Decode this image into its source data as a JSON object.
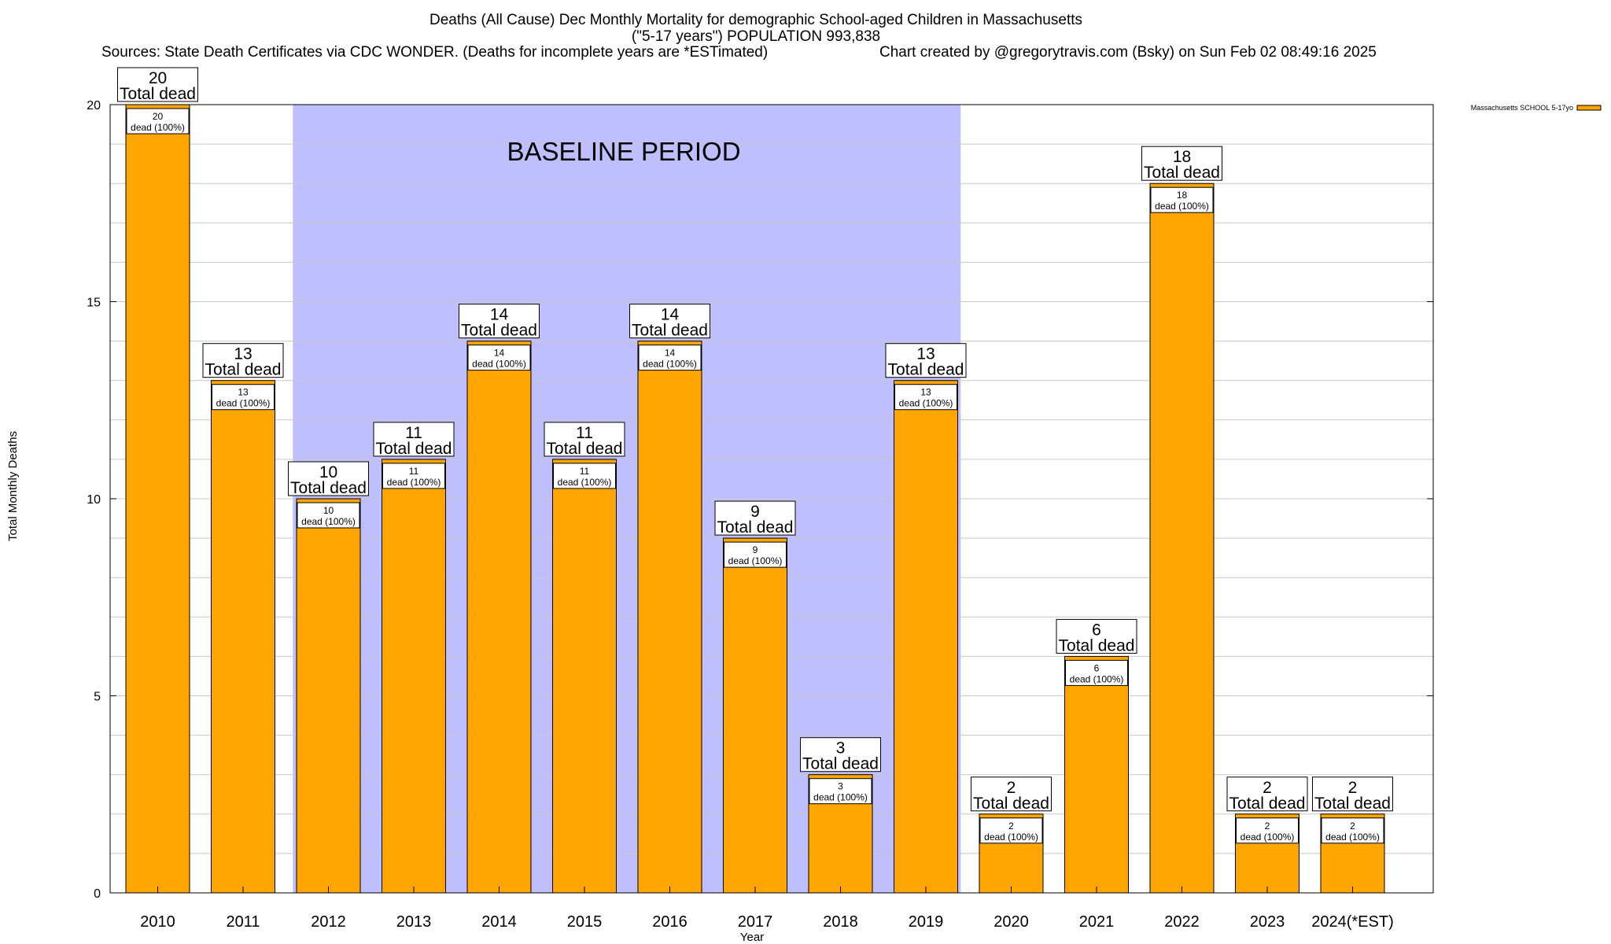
{
  "chart_data": {
    "type": "bar",
    "title": "Deaths (All Cause) Dec Monthly Mortality for demographic School-aged Children in Massachusetts",
    "subtitle": "(\"5-17 years\") POPULATION 993,838",
    "sources": "Sources: State Death Certificates via CDC WONDER. (Deaths for incomplete years are *ESTimated)",
    "credit": "Chart created by @gregorytravis.com (Bsky) on Sun Feb 02 08:49:16 2025",
    "xlabel": "Year",
    "ylabel": "Total Monthly Deaths",
    "ylim": [
      0,
      20
    ],
    "yticks": [
      "0",
      "5",
      "10",
      "15",
      "20"
    ],
    "grid": true,
    "legend_position": "top-right",
    "categories": [
      "2010",
      "2011",
      "2012",
      "2013",
      "2014",
      "2015",
      "2016",
      "2017",
      "2018",
      "2019",
      "2020",
      "2021",
      "2022",
      "2023",
      "2024(*EST)"
    ],
    "series": [
      {
        "name": "Massachusetts SCHOOL 5-17yo",
        "color": "#ffa500",
        "values": [
          20,
          13,
          10,
          11,
          14,
          11,
          14,
          9,
          3,
          13,
          2,
          6,
          18,
          2,
          2
        ],
        "value_labels": [
          "20",
          "13",
          "10",
          "11",
          "14",
          "11",
          "14",
          "9",
          "3",
          "13",
          "2",
          "6",
          "18",
          "2",
          "2"
        ]
      }
    ],
    "bar_label_total": "Total dead",
    "bar_label_share": "dead (100%)",
    "baseline": {
      "label": "BASELINE PERIOD",
      "start_category": "2012",
      "end_category": "2019",
      "color": "#bfbfff"
    }
  }
}
